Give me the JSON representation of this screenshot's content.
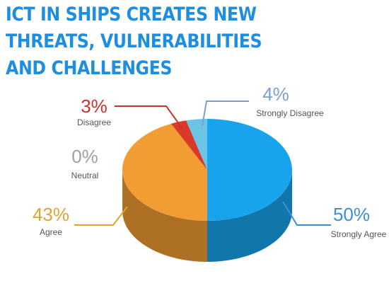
{
  "chart_data": {
    "type": "pie",
    "title": "ICT IN SHIPS CREATES NEW THREATS, VULNERABILITIES AND CHALLENGES",
    "title_color": "#1e8fe0",
    "categories": [
      "Strongly Agree",
      "Agree",
      "Neutral",
      "Disagree",
      "Strongly Disagree"
    ],
    "values": [
      50,
      43,
      0,
      3,
      4
    ],
    "value_labels": [
      "50%",
      "43%",
      "0%",
      "3%",
      "4%"
    ],
    "colors": [
      "#17a4ec",
      "#f29c34",
      "#9a9a9a",
      "#d8392a",
      "#6cc4e4"
    ],
    "label_colors": [
      "#3b8fd9",
      "#e2a42c",
      "#a0a0a0",
      "#c8332a",
      "#7b9fcb"
    ]
  }
}
